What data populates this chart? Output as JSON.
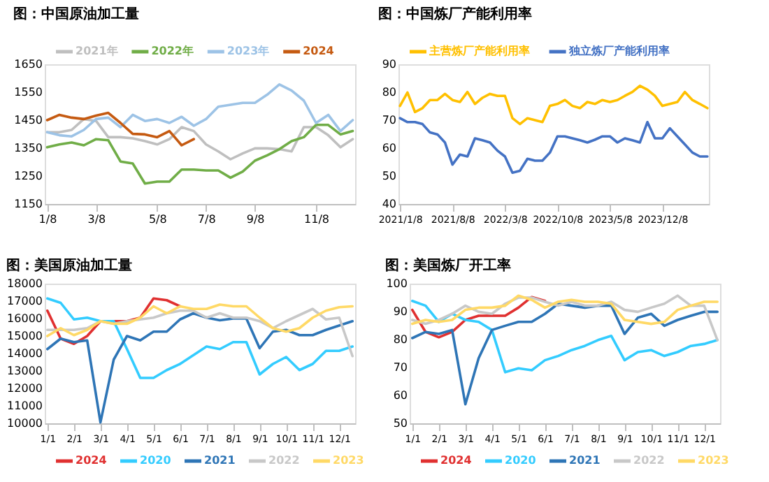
{
  "chart_data": [
    {
      "type": "line",
      "title": "图：中国原油加工量",
      "legend": "top",
      "grid": false,
      "categories": [
        "1/8",
        null,
        null,
        null,
        "3/8",
        null,
        null,
        null,
        null,
        "5/8",
        null,
        null,
        null,
        "7/8",
        null,
        null,
        null,
        "9/8",
        null,
        null,
        null,
        null,
        "11/8",
        null,
        null,
        null
      ],
      "ylim": [
        1150,
        1650
      ],
      "yticks": [
        1150,
        1250,
        1350,
        1450,
        1550,
        1650
      ],
      "series": [
        {
          "name": "2021年",
          "color": "#bfbfbf",
          "values": [
            1407,
            1407,
            1415,
            1454,
            1447,
            1389,
            1389,
            1385,
            1375,
            1363,
            1382,
            1425,
            1411,
            1363,
            1338,
            1310,
            1331,
            1349,
            1349,
            1346,
            1338,
            1425,
            1425,
            1396,
            1353,
            1382
          ]
        },
        {
          "name": "2022年",
          "color": "#70ad47",
          "values": [
            1353,
            1363,
            1370,
            1360,
            1382,
            1378,
            1302,
            1295,
            1223,
            1230,
            1230,
            1273,
            1273,
            1270,
            1270,
            1244,
            1266,
            1305,
            1324,
            1346,
            1375,
            1389,
            1433,
            1433,
            1399,
            1411
          ]
        },
        {
          "name": "2023年",
          "color": "#9dc3e6",
          "values": [
            1407,
            1396,
            1392,
            1415,
            1454,
            1459,
            1425,
            1469,
            1447,
            1454,
            1440,
            1462,
            1430,
            1454,
            1498,
            1505,
            1512,
            1512,
            1541,
            1578,
            1556,
            1520,
            1440,
            1469,
            1411,
            1450
          ]
        },
        {
          "name": "2024",
          "color": "#c55a11",
          "values": [
            1450,
            1469,
            1459,
            1454,
            1466,
            1476,
            1440,
            1401,
            1399,
            1389,
            1411,
            1360,
            1382,
            null,
            null,
            null,
            null,
            null,
            null,
            null,
            null,
            null,
            null,
            null,
            null,
            null
          ]
        }
      ]
    },
    {
      "type": "line",
      "title": "图：中国炼厂产能利用率",
      "legend": "top",
      "grid": false,
      "categories": [
        "2021/1/8",
        null,
        null,
        null,
        null,
        null,
        null,
        "2021/8/8",
        null,
        null,
        null,
        null,
        null,
        null,
        "2022/3/8",
        null,
        null,
        null,
        null,
        null,
        null,
        "2022/10/8",
        null,
        null,
        null,
        null,
        null,
        null,
        "2023/5/8",
        null,
        null,
        null,
        null,
        null,
        null,
        "2023/12/8",
        null,
        null,
        null,
        null,
        null,
        null
      ],
      "ylim": [
        40,
        90
      ],
      "yticks": [
        40,
        50,
        60,
        70,
        80,
        90
      ],
      "series": [
        {
          "name": "主营炼厂产能利用率",
          "color": "#ffc000",
          "values": [
            75.1,
            79.9,
            72.9,
            74.3,
            77.2,
            77.2,
            79.4,
            77.2,
            76.5,
            80.1,
            75.8,
            78.0,
            79.4,
            78.7,
            78.7,
            70.7,
            68.6,
            70.7,
            70.0,
            69.3,
            75.1,
            75.8,
            77.2,
            75.1,
            74.3,
            76.5,
            75.8,
            77.2,
            76.5,
            77.2,
            78.7,
            80.1,
            82.3,
            80.9,
            78.7,
            75.1,
            75.8,
            76.5,
            80.1,
            77.2,
            75.8,
            74.3
          ]
        },
        {
          "name": "独立炼厂产能利用率",
          "color": "#4472c4",
          "values": [
            70.7,
            69.3,
            69.3,
            68.6,
            65.6,
            64.9,
            62.0,
            54.1,
            57.7,
            57.0,
            63.5,
            62.8,
            62.0,
            59.1,
            57.0,
            51.2,
            51.9,
            56.2,
            55.5,
            55.5,
            58.4,
            64.2,
            64.2,
            63.5,
            62.8,
            62.0,
            63.0,
            64.2,
            64.2,
            62.0,
            63.5,
            62.8,
            62.0,
            69.3,
            63.5,
            63.5,
            67.1,
            64.2,
            61.3,
            58.4,
            57.0,
            57.0
          ]
        }
      ]
    },
    {
      "type": "line",
      "title": "图：美国原油加工量",
      "legend": "bottom",
      "grid": false,
      "categories": [
        "1/1",
        null,
        "2/1",
        null,
        "3/1",
        null,
        "4/1",
        null,
        "5/1",
        null,
        "6/1",
        null,
        "7/1",
        null,
        "8/1",
        null,
        "9/1",
        null,
        "10/1",
        null,
        "11/1",
        null,
        "12/1",
        null
      ],
      "ylim": [
        10000,
        18000
      ],
      "yticks": [
        10000,
        11000,
        12000,
        13000,
        14000,
        15000,
        16000,
        17000,
        18000
      ],
      "series": [
        {
          "name": "2024",
          "color": "#e03030",
          "values": [
            16450,
            14850,
            14550,
            15000,
            15850,
            15850,
            15850,
            16050,
            17150,
            17050,
            16700,
            null,
            null,
            null,
            null,
            null,
            null,
            null,
            null,
            null,
            null,
            null,
            null,
            null
          ]
        },
        {
          "name": "2020",
          "color": "#33ccff",
          "values": [
            17150,
            16900,
            15950,
            16050,
            15850,
            15850,
            14250,
            12600,
            12600,
            13050,
            13400,
            13900,
            14400,
            14250,
            14650,
            14650,
            12800,
            13400,
            13800,
            13050,
            13400,
            14150,
            14150,
            14400
          ]
        },
        {
          "name": "2021",
          "color": "#2e75b6",
          "values": [
            14250,
            14850,
            14650,
            14750,
            10050,
            13650,
            15000,
            14750,
            15250,
            15250,
            15950,
            16300,
            16050,
            15900,
            16000,
            16000,
            14300,
            15250,
            15350,
            15050,
            15050,
            15350,
            15600,
            15850
          ]
        },
        {
          "name": "2022",
          "color": "#c8c8c8",
          "values": [
            15350,
            15350,
            15350,
            15450,
            15850,
            15700,
            15850,
            15950,
            16050,
            16300,
            16450,
            16450,
            16050,
            16300,
            16050,
            16050,
            15850,
            15450,
            15850,
            16200,
            16550,
            15950,
            16050,
            13850
          ]
        },
        {
          "name": "2023",
          "color": "#ffd966",
          "values": [
            15000,
            15450,
            15050,
            15350,
            15850,
            15700,
            15700,
            16050,
            16700,
            16300,
            16700,
            16550,
            16550,
            16800,
            16700,
            16700,
            16050,
            15450,
            15250,
            15450,
            16050,
            16450,
            16650,
            16700
          ]
        }
      ]
    },
    {
      "type": "line",
      "title": "图：美国炼厂开工率",
      "legend": "bottom",
      "grid": false,
      "categories": [
        "1/1",
        null,
        "2/1",
        null,
        "3/1",
        null,
        "4/1",
        null,
        "5/1",
        null,
        "6/1",
        null,
        "7/1",
        null,
        "8/1",
        null,
        "9/1",
        null,
        "10/1",
        null,
        "11/1",
        null,
        "12/1",
        null
      ],
      "ylim": [
        50,
        100
      ],
      "yticks": [
        50,
        60,
        70,
        80,
        90,
        100
      ],
      "series": [
        {
          "name": "2024",
          "color": "#e03030",
          "values": [
            90.6,
            82.7,
            80.8,
            82.7,
            87.0,
            88.5,
            88.5,
            88.5,
            91.4,
            95.2,
            93.8,
            null,
            null,
            null,
            null,
            null,
            null,
            null,
            null,
            null,
            null,
            null,
            null,
            null
          ]
        },
        {
          "name": "2020",
          "color": "#33ccff",
          "values": [
            93.8,
            92.1,
            86.3,
            89.2,
            87.0,
            86.3,
            83.4,
            68.3,
            69.7,
            69.0,
            72.6,
            74.1,
            76.2,
            77.7,
            79.8,
            81.3,
            72.6,
            75.5,
            76.2,
            74.1,
            75.5,
            77.7,
            78.4,
            79.8
          ]
        },
        {
          "name": "2021",
          "color": "#2e75b6",
          "values": [
            80.5,
            82.7,
            82.0,
            83.4,
            56.8,
            73.3,
            83.4,
            84.9,
            86.3,
            86.3,
            89.2,
            92.8,
            92.1,
            91.4,
            92.1,
            92.1,
            82.0,
            87.8,
            89.2,
            84.9,
            87.0,
            88.5,
            89.9,
            89.9
          ]
        },
        {
          "name": "2022",
          "color": "#c8c8c8",
          "values": [
            87.0,
            85.6,
            87.0,
            89.2,
            92.1,
            89.9,
            89.2,
            92.8,
            95.0,
            95.0,
            93.5,
            92.1,
            93.5,
            92.1,
            92.1,
            93.5,
            90.6,
            89.9,
            91.4,
            92.8,
            95.7,
            92.1,
            92.1,
            79.8
          ]
        },
        {
          "name": "2023",
          "color": "#ffd966",
          "values": [
            85.6,
            87.0,
            86.3,
            87.0,
            90.6,
            91.4,
            91.4,
            92.1,
            95.7,
            94.2,
            91.4,
            93.5,
            94.2,
            93.5,
            93.5,
            92.8,
            87.0,
            86.3,
            85.6,
            86.3,
            90.6,
            92.1,
            93.5,
            93.5
          ]
        }
      ]
    }
  ]
}
